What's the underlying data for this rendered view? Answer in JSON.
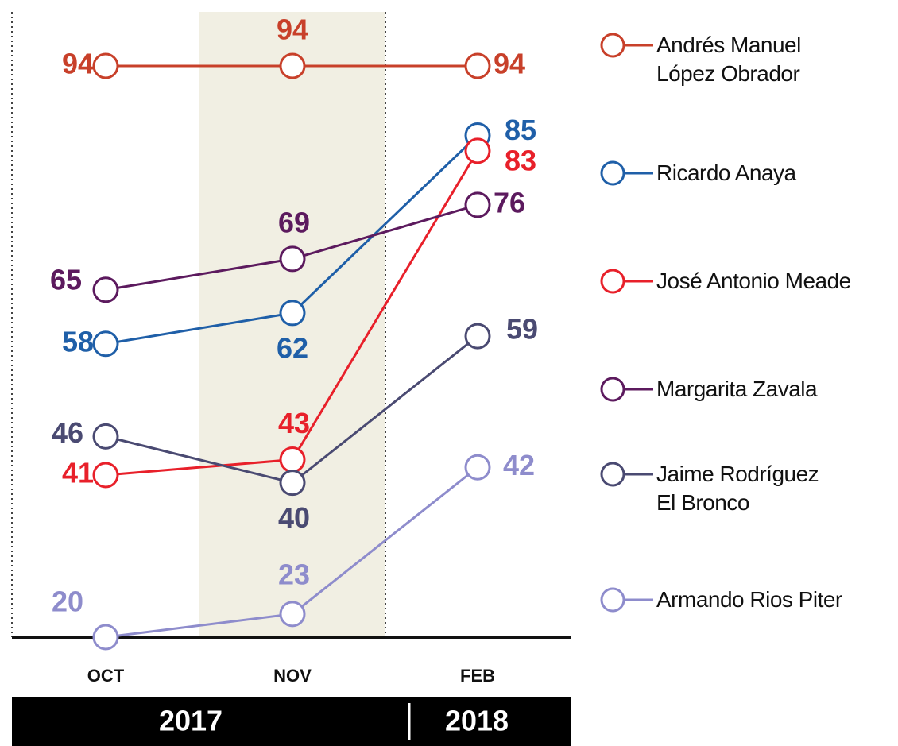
{
  "chart_data": {
    "type": "line",
    "categories": [
      "OCT",
      "NOV",
      "FEB"
    ],
    "periods": [
      "2017",
      "2018"
    ],
    "ylim": [
      20,
      101
    ],
    "series": [
      {
        "name": "Andrés Manuel\nLópez Obrador",
        "color": "#c8402a",
        "values": [
          94,
          94,
          94
        ]
      },
      {
        "name": "Ricardo Anaya",
        "color": "#1f5fa8",
        "values": [
          58,
          62,
          85
        ]
      },
      {
        "name": "José Antonio Meade",
        "color": "#e8202a",
        "values": [
          41,
          43,
          83
        ]
      },
      {
        "name": "Margarita Zavala",
        "color": "#5c1a5e",
        "values": [
          65,
          69,
          76
        ]
      },
      {
        "name": "Jaime Rodríguez\nEl Bronco",
        "color": "#4a4a72",
        "values": [
          46,
          40,
          59
        ]
      },
      {
        "name": "Armando Rios Piter",
        "color": "#8e8ccc",
        "values": [
          20,
          23,
          42
        ]
      }
    ]
  }
}
